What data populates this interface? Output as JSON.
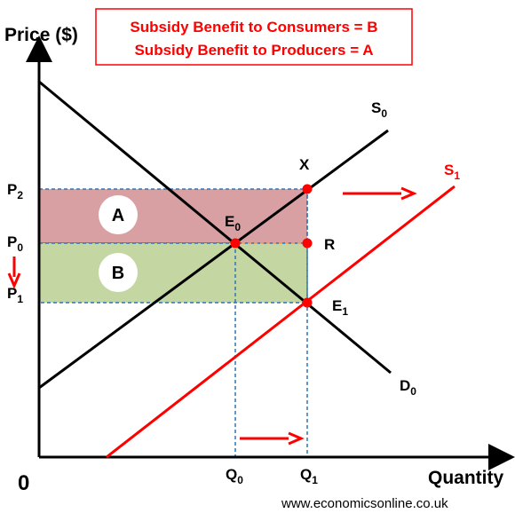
{
  "title_box": {
    "line1": "Subsidy Benefit to Consumers = B",
    "line2": "Subsidy Benefit to Producers = A"
  },
  "axes": {
    "y_title": "Price ($)",
    "x_title": "Quantity",
    "origin": "0"
  },
  "price_labels": [
    {
      "main": "P",
      "sub": "2"
    },
    {
      "main": "P",
      "sub": "0"
    },
    {
      "main": "P",
      "sub": "1"
    }
  ],
  "quantity_labels": [
    {
      "main": "Q",
      "sub": "0"
    },
    {
      "main": "Q",
      "sub": "1"
    }
  ],
  "curve_labels": {
    "s0": {
      "main": "S",
      "sub": "0"
    },
    "s1": {
      "main": "S",
      "sub": "1"
    },
    "d0": {
      "main": "D",
      "sub": "0"
    }
  },
  "point_labels": {
    "e0": {
      "main": "E",
      "sub": "0"
    },
    "e1": {
      "main": "E",
      "sub": "1"
    },
    "x": "X",
    "r": "R"
  },
  "areas": {
    "a": "A",
    "b": "B"
  },
  "source": "www.economicsonline.co.uk",
  "colors": {
    "area_a": "#d9a0a3",
    "area_b": "#c4d6a2",
    "red": "#ff0000",
    "guide": "#2e75b6",
    "black": "#000000"
  }
}
